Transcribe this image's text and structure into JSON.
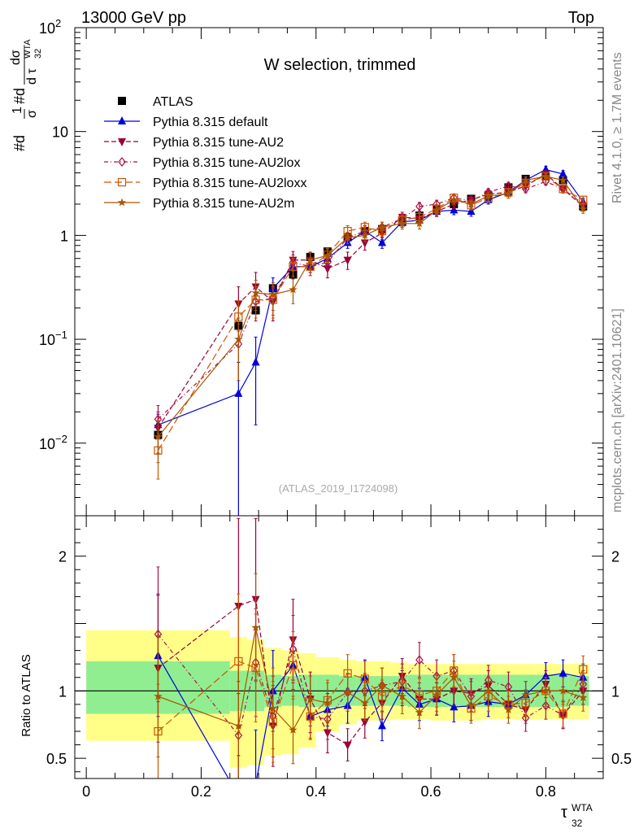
{
  "header": {
    "left": "13000 GeV pp",
    "right": "Top"
  },
  "side": {
    "rivet": "Rivet 4.1.0, ≥ 1.7M events",
    "mcplots": "mcplots.cern.ch [arXiv:2401.10621]"
  },
  "colors": {
    "atlas": "#000000",
    "default": "#0000dd",
    "au2": "#990033",
    "au2lox": "#aa1144",
    "au2loxx": "#cc5500",
    "au2m": "#aa5500",
    "band_inner": "#90ee90",
    "band_outer": "#ffff88"
  },
  "chart_data": [
    {
      "type": "line",
      "title": "W selection, trimmed",
      "ylabel": "#d1/σ #d dσ/d τ32^WTA",
      "ylabel_parts": {
        "a": "#d",
        "frac1_num": "1",
        "frac1_den": "σ",
        "b": "#d",
        "frac2_num": "dσ",
        "frac2_den": "d τ",
        "sup": "WTA",
        "sub": "32"
      },
      "yscale": "log",
      "ylim": [
        0.002,
        100
      ],
      "xlim": [
        -0.02,
        0.9
      ],
      "yticks": [
        {
          "v": 100,
          "base": "10",
          "exp": "2"
        },
        {
          "v": 10,
          "base": "10",
          "exp": ""
        },
        {
          "v": 1,
          "base": "1",
          "exp": ""
        },
        {
          "v": 0.1,
          "base": "10",
          "exp": "−1"
        },
        {
          "v": 0.01,
          "base": "10",
          "exp": "−2"
        }
      ],
      "watermark": "(ATLAS_2019_I1724098)",
      "x": [
        0.125,
        0.265,
        0.295,
        0.325,
        0.36,
        0.39,
        0.42,
        0.455,
        0.485,
        0.515,
        0.55,
        0.58,
        0.61,
        0.64,
        0.67,
        0.7,
        0.735,
        0.765,
        0.8,
        0.83,
        0.865
      ],
      "series": [
        {
          "name": "ATLAS",
          "style": "data",
          "color": "#000000",
          "values": [
            0.012,
            0.135,
            0.19,
            0.31,
            0.42,
            0.62,
            0.7,
            0.96,
            1.1,
            1.15,
            1.35,
            1.55,
            1.8,
            2.0,
            2.25,
            2.4,
            2.9,
            3.5,
            3.7,
            3.4,
            1.9
          ],
          "errors": [
            0.001,
            0.01,
            0.02,
            0.02,
            0.03,
            0.04,
            0.05,
            0.05,
            0.06,
            0.06,
            0.07,
            0.08,
            0.09,
            0.1,
            0.11,
            0.12,
            0.14,
            0.17,
            0.18,
            0.17,
            0.1
          ]
        },
        {
          "name": "Pythia 8.315 default",
          "style": "solid",
          "marker": "tri-up",
          "color": "#0000dd",
          "values": [
            0.015,
            0.03,
            0.06,
            0.31,
            0.5,
            0.5,
            0.6,
            0.85,
            1.1,
            0.85,
            1.35,
            1.4,
            1.7,
            1.75,
            1.7,
            2.2,
            2.6,
            3.4,
            4.3,
            3.9,
            2.1
          ],
          "errors": [
            0.004,
            0.03,
            0.045,
            0.08,
            0.09,
            0.06,
            0.07,
            0.1,
            0.14,
            0.1,
            0.15,
            0.15,
            0.17,
            0.17,
            0.17,
            0.2,
            0.22,
            0.28,
            0.33,
            0.3,
            0.18
          ]
        },
        {
          "name": "Pythia 8.315 tune-AU2",
          "style": "dashed",
          "marker": "tri-down",
          "color": "#990033",
          "values": [
            0.014,
            0.22,
            0.32,
            0.23,
            0.58,
            0.58,
            0.48,
            0.58,
            0.85,
            1.05,
            1.5,
            1.45,
            1.7,
            2.0,
            2.2,
            2.5,
            2.6,
            3.0,
            3.9,
            2.8,
            1.9
          ],
          "errors": [
            0.006,
            0.1,
            0.12,
            0.08,
            0.12,
            0.11,
            0.09,
            0.11,
            0.13,
            0.14,
            0.17,
            0.16,
            0.18,
            0.19,
            0.2,
            0.22,
            0.22,
            0.25,
            0.3,
            0.24,
            0.18
          ]
        },
        {
          "name": "Pythia 8.315 tune-AU2lox",
          "style": "dashdot",
          "marker": "diamond",
          "color": "#aa1144",
          "values": [
            0.017,
            0.09,
            0.23,
            0.25,
            0.55,
            0.5,
            0.55,
            0.95,
            1.1,
            1.2,
            1.45,
            1.9,
            2.0,
            2.3,
            2.15,
            2.6,
            3.0,
            2.8,
            3.3,
            2.8,
            2.0
          ],
          "errors": [
            0.006,
            0.05,
            0.08,
            0.08,
            0.1,
            0.09,
            0.09,
            0.12,
            0.13,
            0.14,
            0.16,
            0.18,
            0.18,
            0.2,
            0.19,
            0.22,
            0.24,
            0.23,
            0.26,
            0.23,
            0.18
          ]
        },
        {
          "name": "Pythia 8.315 tune-AU2loxx",
          "style": "longdash",
          "marker": "square-open",
          "color": "#cc5500",
          "values": [
            0.0085,
            0.165,
            0.24,
            0.24,
            0.5,
            0.5,
            0.65,
            1.1,
            1.2,
            1.1,
            1.4,
            1.5,
            1.8,
            2.3,
            1.95,
            2.3,
            2.6,
            3.2,
            3.7,
            2.8,
            2.2
          ],
          "errors": [
            0.004,
            0.07,
            0.08,
            0.08,
            0.1,
            0.09,
            0.1,
            0.14,
            0.14,
            0.13,
            0.16,
            0.16,
            0.18,
            0.21,
            0.19,
            0.21,
            0.23,
            0.26,
            0.29,
            0.24,
            0.19
          ]
        },
        {
          "name": "Pythia 8.315 tune-AU2m",
          "style": "solid",
          "marker": "star",
          "color": "#aa5500",
          "values": [
            0.0115,
            0.1,
            0.28,
            0.27,
            0.3,
            0.58,
            0.64,
            0.95,
            1.0,
            1.2,
            1.3,
            1.3,
            1.75,
            2.2,
            2.0,
            2.4,
            2.5,
            3.4,
            3.7,
            3.4,
            1.8
          ],
          "errors": [
            0.005,
            0.06,
            0.09,
            0.08,
            0.08,
            0.1,
            0.1,
            0.12,
            0.13,
            0.14,
            0.15,
            0.15,
            0.17,
            0.2,
            0.19,
            0.21,
            0.22,
            0.27,
            0.29,
            0.27,
            0.17
          ]
        }
      ]
    },
    {
      "type": "line",
      "ylabel": "Ratio to ATLAS",
      "xlabel": "τ",
      "xlabel_sup": "WTA",
      "xlabel_sub": "32",
      "ylim": [
        0.35,
        2.3
      ],
      "yticks": [
        {
          "v": 0.5,
          "label": "0.5"
        },
        {
          "v": 1,
          "label": "1"
        },
        {
          "v": 2,
          "label": "2"
        }
      ],
      "xticks": [
        {
          "v": 0,
          "label": "0"
        },
        {
          "v": 0.2,
          "label": "0.2"
        },
        {
          "v": 0.4,
          "label": "0.4"
        },
        {
          "v": 0.6,
          "label": "0.6"
        },
        {
          "v": 0.8,
          "label": "0.8"
        }
      ],
      "bands": {
        "edges": [
          0.0,
          0.25,
          0.28,
          0.31,
          0.34,
          0.37,
          0.4,
          0.44,
          0.47,
          0.5,
          0.53,
          0.56,
          0.6,
          0.63,
          0.66,
          0.69,
          0.72,
          0.75,
          0.78,
          0.81,
          0.84,
          0.875
        ],
        "inner_lo": [
          0.83,
          0.85,
          0.85,
          0.88,
          0.89,
          0.88,
          0.88,
          0.89,
          0.89,
          0.89,
          0.89,
          0.88,
          0.88,
          0.88,
          0.88,
          0.88,
          0.88,
          0.88,
          0.88,
          0.88,
          0.89
        ],
        "inner_hi": [
          1.22,
          1.15,
          1.15,
          1.12,
          1.11,
          1.12,
          1.12,
          1.11,
          1.11,
          1.11,
          1.11,
          1.12,
          1.12,
          1.12,
          1.12,
          1.12,
          1.12,
          1.12,
          1.12,
          1.12,
          1.11
        ],
        "outer_lo": [
          0.63,
          0.43,
          0.45,
          0.52,
          0.53,
          0.58,
          0.7,
          0.75,
          0.78,
          0.78,
          0.79,
          0.79,
          0.78,
          0.78,
          0.78,
          0.79,
          0.79,
          0.79,
          0.79,
          0.79,
          0.79
        ],
        "outer_hi": [
          1.45,
          1.4,
          1.38,
          1.32,
          1.3,
          1.28,
          1.25,
          1.23,
          1.22,
          1.22,
          1.21,
          1.2,
          1.2,
          1.2,
          1.2,
          1.2,
          1.2,
          1.2,
          1.2,
          1.2,
          1.2
        ]
      },
      "series": [
        {
          "name": "Pythia 8.315 default",
          "values": [
            1.26,
            0.22,
            0.31,
            1.0,
            1.19,
            0.81,
            0.86,
            0.89,
            1.1,
            0.74,
            1.02,
            0.9,
            0.94,
            0.88,
            0.89,
            0.92,
            0.9,
            0.97,
            1.11,
            1.13,
            1.1
          ],
          "errors": [
            0.45,
            0.3,
            0.4,
            0.3,
            0.18,
            0.12,
            0.12,
            0.13,
            0.13,
            0.11,
            0.13,
            0.12,
            0.12,
            0.11,
            0.11,
            0.11,
            0.1,
            0.1,
            0.1,
            0.1,
            0.1
          ]
        },
        {
          "name": "Pythia 8.315 tune-AU2",
          "values": [
            1.17,
            1.63,
            1.68,
            0.74,
            1.38,
            0.94,
            0.69,
            0.6,
            0.77,
            0.91,
            1.11,
            0.94,
            0.94,
            1.0,
            0.98,
            1.04,
            0.9,
            0.86,
            1.05,
            0.82,
            1.0
          ],
          "errors": [
            0.55,
            0.65,
            0.6,
            0.3,
            0.3,
            0.2,
            0.15,
            0.12,
            0.12,
            0.12,
            0.13,
            0.12,
            0.12,
            0.11,
            0.11,
            0.11,
            0.1,
            0.1,
            0.1,
            0.1,
            0.1
          ]
        },
        {
          "name": "Pythia 8.315 tune-AU2lox",
          "values": [
            1.42,
            0.67,
            1.21,
            0.81,
            1.31,
            0.81,
            0.79,
            0.99,
            1.0,
            1.04,
            1.07,
            1.23,
            1.11,
            1.15,
            0.96,
            1.08,
            1.03,
            0.8,
            0.89,
            0.82,
            1.05
          ],
          "errors": [
            0.5,
            0.4,
            0.4,
            0.3,
            0.25,
            0.17,
            0.15,
            0.14,
            0.13,
            0.13,
            0.13,
            0.13,
            0.12,
            0.12,
            0.11,
            0.11,
            0.11,
            0.1,
            0.1,
            0.1,
            0.1
          ]
        },
        {
          "name": "Pythia 8.315 tune-AU2loxx",
          "values": [
            0.7,
            1.22,
            1.17,
            0.77,
            1.19,
            0.81,
            0.93,
            1.13,
            1.09,
            0.96,
            1.04,
            0.97,
            1.0,
            1.15,
            0.87,
            0.96,
            0.9,
            0.91,
            1.0,
            0.83,
            1.16
          ],
          "errors": [
            0.35,
            0.5,
            0.4,
            0.3,
            0.25,
            0.16,
            0.15,
            0.14,
            0.13,
            0.12,
            0.13,
            0.12,
            0.12,
            0.12,
            0.11,
            0.11,
            0.1,
            0.1,
            0.1,
            0.1,
            0.1
          ]
        },
        {
          "name": "Pythia 8.315 tune-AU2m",
          "values": [
            0.96,
            0.74,
            1.47,
            0.87,
            0.71,
            0.94,
            0.91,
            0.99,
            0.91,
            1.04,
            0.96,
            0.84,
            0.97,
            1.1,
            0.89,
            1.0,
            0.86,
            0.97,
            1.0,
            1.0,
            0.95
          ],
          "errors": [
            0.45,
            0.45,
            0.4,
            0.3,
            0.25,
            0.17,
            0.15,
            0.14,
            0.13,
            0.13,
            0.13,
            0.12,
            0.12,
            0.12,
            0.11,
            0.11,
            0.1,
            0.1,
            0.1,
            0.1,
            0.1
          ]
        }
      ]
    }
  ]
}
